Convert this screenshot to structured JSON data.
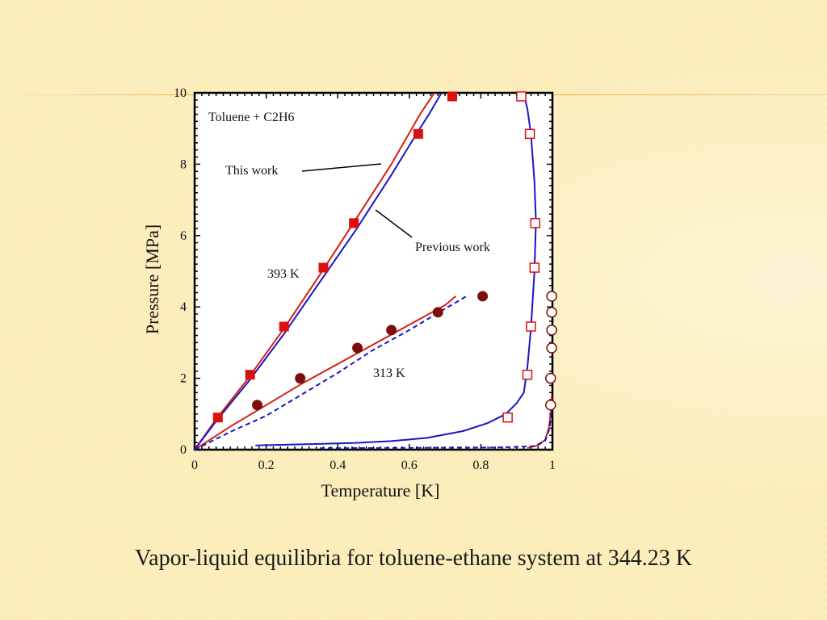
{
  "caption": "Vapor-liquid equilibria for toluene-ethane system at 344.23 K",
  "chart_data": {
    "type": "scatter",
    "xlabel": "Temperature [K]",
    "ylabel": "Pressure [MPa]",
    "xlim": [
      0,
      1
    ],
    "ylim": [
      0,
      10
    ],
    "x_ticks": [
      "0",
      "0.2",
      "0.4",
      "0.6",
      "0.8",
      "1"
    ],
    "y_ticks": [
      "0",
      "2",
      "4",
      "6",
      "8",
      "10"
    ],
    "annotations": {
      "system": "Toluene + C2H6",
      "this_work": "This work",
      "previous_work": "Previous work",
      "t393": "393 K",
      "t313": "313 K"
    },
    "colors": {
      "this_work_line": "#d42010",
      "previous_work_line": "#1a16c0",
      "square": "#dd0f0f",
      "circle": "#7b0e0e"
    },
    "series": [
      {
        "kind": "filled-square",
        "points": [
          [
            0.065,
            0.9
          ],
          [
            0.155,
            2.1
          ],
          [
            0.25,
            3.45
          ],
          [
            0.36,
            5.1
          ],
          [
            0.445,
            6.35
          ],
          [
            0.625,
            8.85
          ],
          [
            0.72,
            9.9
          ]
        ]
      },
      {
        "kind": "open-square",
        "points": [
          [
            0.875,
            0.9
          ],
          [
            0.93,
            2.1
          ],
          [
            0.94,
            3.45
          ],
          [
            0.95,
            5.1
          ],
          [
            0.952,
            6.35
          ],
          [
            0.937,
            8.85
          ],
          [
            0.913,
            9.9
          ]
        ]
      },
      {
        "kind": "filled-circle",
        "points": [
          [
            0.175,
            1.25
          ],
          [
            0.295,
            2.0
          ],
          [
            0.455,
            2.85
          ],
          [
            0.55,
            3.35
          ],
          [
            0.68,
            3.85
          ],
          [
            0.805,
            4.3
          ]
        ]
      },
      {
        "kind": "open-circle",
        "points": [
          [
            0.995,
            1.25
          ],
          [
            0.995,
            2.0
          ],
          [
            0.998,
            2.85
          ],
          [
            0.998,
            3.35
          ],
          [
            0.998,
            3.85
          ],
          [
            0.998,
            4.3
          ]
        ]
      },
      {
        "kind": "line",
        "style": "solid",
        "color_key": "this_work_line",
        "points": [
          [
            0.0,
            0.0
          ],
          [
            0.06,
            0.85
          ],
          [
            0.15,
            2.0
          ],
          [
            0.25,
            3.4
          ],
          [
            0.35,
            4.9
          ],
          [
            0.45,
            6.45
          ],
          [
            0.55,
            8.0
          ],
          [
            0.63,
            9.4
          ],
          [
            0.67,
            10.0
          ]
        ]
      },
      {
        "kind": "line",
        "style": "solid",
        "color_key": "previous_work_line",
        "points": [
          [
            0.0,
            0.0
          ],
          [
            0.06,
            0.8
          ],
          [
            0.15,
            1.9
          ],
          [
            0.25,
            3.25
          ],
          [
            0.35,
            4.7
          ],
          [
            0.45,
            6.15
          ],
          [
            0.55,
            7.7
          ],
          [
            0.62,
            8.85
          ],
          [
            0.655,
            9.4
          ],
          [
            0.69,
            10.0
          ]
        ]
      },
      {
        "kind": "line",
        "style": "solid",
        "color_key": "this_work_line",
        "points": [
          [
            0.0,
            0.0
          ],
          [
            0.1,
            0.65
          ],
          [
            0.2,
            1.25
          ],
          [
            0.3,
            1.85
          ],
          [
            0.4,
            2.4
          ],
          [
            0.5,
            2.95
          ],
          [
            0.6,
            3.5
          ],
          [
            0.7,
            4.05
          ],
          [
            0.73,
            4.3
          ]
        ]
      },
      {
        "kind": "line",
        "style": "dashed",
        "color_key": "previous_work_line",
        "points": [
          [
            0.0,
            0.0
          ],
          [
            0.1,
            0.5
          ],
          [
            0.2,
            0.95
          ],
          [
            0.3,
            1.55
          ],
          [
            0.4,
            2.15
          ],
          [
            0.5,
            2.8
          ],
          [
            0.6,
            3.35
          ],
          [
            0.7,
            3.95
          ],
          [
            0.76,
            4.3
          ]
        ]
      },
      {
        "kind": "line",
        "style": "solid",
        "color_key": "previous_work_line",
        "points": [
          [
            0.17,
            0.12
          ],
          [
            0.3,
            0.15
          ],
          [
            0.45,
            0.19
          ],
          [
            0.55,
            0.24
          ],
          [
            0.65,
            0.33
          ],
          [
            0.75,
            0.52
          ],
          [
            0.82,
            0.75
          ],
          [
            0.87,
            1.0
          ],
          [
            0.9,
            1.3
          ],
          [
            0.92,
            1.6
          ],
          [
            0.93,
            2.3
          ],
          [
            0.94,
            3.4
          ],
          [
            0.95,
            5.0
          ],
          [
            0.954,
            6.4
          ],
          [
            0.95,
            7.5
          ],
          [
            0.94,
            8.85
          ],
          [
            0.93,
            9.55
          ],
          [
            0.92,
            10.0
          ]
        ]
      },
      {
        "kind": "line",
        "style": "solid",
        "color_key": "this_work_line",
        "points": [
          [
            0.93,
            0.05
          ],
          [
            0.96,
            0.12
          ],
          [
            0.98,
            0.28
          ],
          [
            0.99,
            0.6
          ],
          [
            0.995,
            1.0
          ],
          [
            0.998,
            1.5
          ]
        ]
      },
      {
        "kind": "line",
        "style": "dashed",
        "color_key": "previous_work_line",
        "points": [
          [
            0.35,
            0.04
          ],
          [
            0.6,
            0.05
          ],
          [
            0.85,
            0.06
          ],
          [
            0.95,
            0.1
          ],
          [
            0.98,
            0.25
          ],
          [
            0.992,
            0.6
          ],
          [
            0.998,
            1.2
          ]
        ]
      }
    ]
  }
}
